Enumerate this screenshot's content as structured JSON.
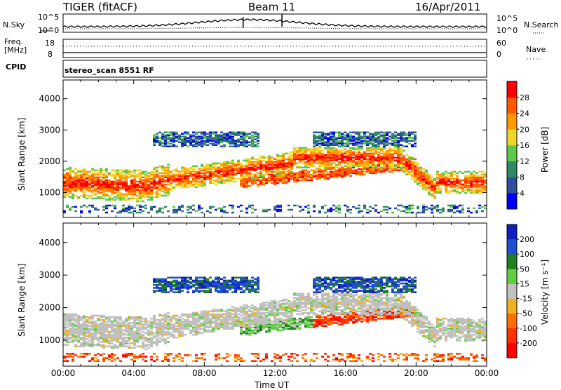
{
  "header": {
    "radar": "TIGER (fitACF)",
    "beam": "Beam 11",
    "date": "16/Apr/2011"
  },
  "top_panels": {
    "nsky_label": "N.Sky",
    "nsky_ticks": [
      "10^5",
      "10^0"
    ],
    "nsearch_label": "N.Search",
    "freq_label": "Freq.",
    "freq_unit": "[MHz]",
    "freq_ticks": [
      "18",
      "8"
    ],
    "nave_label": "Nave",
    "nave_ticks": [
      "60",
      "0"
    ],
    "cpid_label": "CPID",
    "cpid_value": "stereo_scan 8551 RF"
  },
  "chart_data": [
    {
      "type": "heatmap",
      "name": "power",
      "ylabel": "Slant Range [km]",
      "ylim": [
        200,
        4600
      ],
      "yticks": [
        "1000",
        "2000",
        "3000",
        "4000"
      ],
      "xlim": [
        0,
        24
      ],
      "colorbar_label": "Power [dB]",
      "colorbar_ticks": [
        "4",
        "8",
        "12",
        "16",
        "20",
        "24",
        "28"
      ],
      "colorbar_colors": [
        "#0000ff",
        "#2d4f9d",
        "#2f8a63",
        "#5cc94c",
        "#f0d62c",
        "#ff9900",
        "#ff5a00",
        "#ff0000"
      ]
    },
    {
      "type": "heatmap",
      "name": "velocity",
      "ylabel": "Slant Range [km]",
      "ylim": [
        200,
        4600
      ],
      "yticks": [
        "1000",
        "2000",
        "3000",
        "4000"
      ],
      "xlim": [
        0,
        24
      ],
      "xlabel": "Time UT",
      "xticks": [
        "00:00",
        "04:00",
        "08:00",
        "12:00",
        "16:00",
        "20:00",
        "00:00"
      ],
      "colorbar_label": "Velocity [m s⁻¹]",
      "colorbar_ticks": [
        "200",
        "100",
        "50",
        "15",
        "-15",
        "-50",
        "-100",
        "-200"
      ],
      "colorbar_colors": [
        "#1020c0",
        "#2050d0",
        "#208020",
        "#60d040",
        "#c0c0c0",
        "#f0b020",
        "#ff7000",
        "#ff3000",
        "#ff0000"
      ]
    }
  ]
}
